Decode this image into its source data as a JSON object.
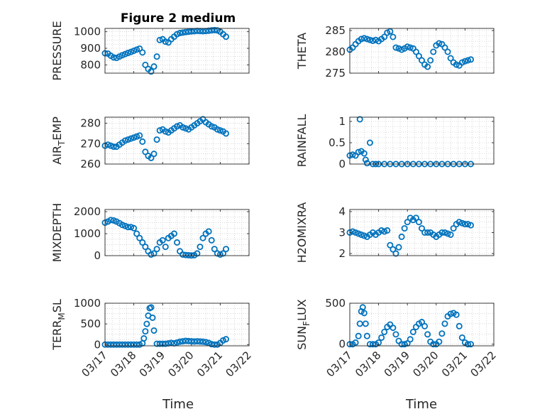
{
  "title": "Figure 2 medium",
  "x_ticks": [
    "03/17",
    "03/18",
    "03/19",
    "03/20",
    "03/21",
    "03/22"
  ],
  "x_label": "Time",
  "colors": {
    "marker": "#0072BD",
    "axis": "#262626",
    "grid": "#bdbdbd"
  },
  "chart_data": [
    {
      "type": "scatter",
      "id": "pressure",
      "ylabel_parts": [
        "PRESSURE"
      ],
      "ylim": [
        750,
        1020
      ],
      "yticks": [
        800,
        900,
        1000
      ],
      "x": [
        0.0,
        0.1,
        0.2,
        0.3,
        0.4,
        0.5,
        0.6,
        0.7,
        0.8,
        0.9,
        1.0,
        1.1,
        1.2,
        1.3,
        1.4,
        1.5,
        1.6,
        1.7,
        1.8,
        1.9,
        2.0,
        2.1,
        2.2,
        2.3,
        2.4,
        2.5,
        2.6,
        2.7,
        2.8,
        2.9,
        3.0,
        3.1,
        3.2,
        3.3,
        3.4,
        3.5,
        3.6,
        3.7,
        3.8,
        3.9,
        4.0,
        4.1,
        4.2
      ],
      "y": [
        870,
        868,
        855,
        845,
        842,
        850,
        858,
        865,
        872,
        878,
        885,
        892,
        898,
        875,
        800,
        775,
        760,
        790,
        850,
        950,
        955,
        940,
        935,
        955,
        970,
        985,
        992,
        995,
        998,
        1000,
        1002,
        1003,
        1005,
        1004,
        1003,
        1004,
        1006,
        1008,
        1010,
        1008,
        1000,
        985,
        970
      ]
    },
    {
      "type": "scatter",
      "id": "theta",
      "ylabel_parts": [
        "THETA"
      ],
      "ylim": [
        275,
        285.5
      ],
      "yticks": [
        275,
        280,
        285
      ],
      "x": [
        0.0,
        0.1,
        0.2,
        0.3,
        0.4,
        0.5,
        0.6,
        0.7,
        0.8,
        0.9,
        1.0,
        1.1,
        1.2,
        1.3,
        1.4,
        1.5,
        1.6,
        1.7,
        1.8,
        1.9,
        2.0,
        2.1,
        2.2,
        2.3,
        2.4,
        2.5,
        2.6,
        2.7,
        2.8,
        2.9,
        3.0,
        3.1,
        3.2,
        3.3,
        3.4,
        3.5,
        3.6,
        3.7,
        3.8,
        3.9,
        4.0,
        4.1,
        4.2
      ],
      "y": [
        280.5,
        281,
        281.8,
        282.5,
        283,
        283.2,
        283,
        282.8,
        282.6,
        282.8,
        282.5,
        283,
        283.5,
        284.5,
        284.8,
        283.5,
        281,
        280.8,
        280.5,
        280.8,
        281.2,
        281,
        280.8,
        280,
        279,
        278,
        277,
        276.5,
        278,
        280,
        281.5,
        282,
        281.8,
        281,
        280,
        278.5,
        277.5,
        277,
        276.8,
        277.5,
        277.8,
        278,
        278.2
      ]
    },
    {
      "type": "scatter",
      "id": "air_temp",
      "ylabel_parts": [
        "AIR",
        "T",
        "EMP"
      ],
      "ylim": [
        260,
        283
      ],
      "yticks": [
        260,
        270,
        280
      ],
      "x": [
        0.0,
        0.1,
        0.2,
        0.3,
        0.4,
        0.5,
        0.6,
        0.7,
        0.8,
        0.9,
        1.0,
        1.1,
        1.2,
        1.3,
        1.4,
        1.5,
        1.6,
        1.7,
        1.8,
        1.9,
        2.0,
        2.1,
        2.2,
        2.3,
        2.4,
        2.5,
        2.6,
        2.7,
        2.8,
        2.9,
        3.0,
        3.1,
        3.2,
        3.3,
        3.4,
        3.5,
        3.6,
        3.7,
        3.8,
        3.9,
        4.0,
        4.1,
        4.2
      ],
      "y": [
        269,
        269.5,
        269,
        268.5,
        268.5,
        269.5,
        270.5,
        271.5,
        272,
        272.5,
        273,
        273.5,
        274,
        271,
        266,
        264,
        263,
        265,
        272,
        276.5,
        277,
        276,
        275.5,
        276.5,
        277.5,
        278.5,
        279,
        278,
        277.5,
        277,
        278,
        279,
        280,
        281,
        282,
        280.5,
        279.5,
        278.5,
        278,
        277,
        276.5,
        276,
        275
      ]
    },
    {
      "type": "scatter",
      "id": "rainfall",
      "ylabel_parts": [
        "RAINFALL"
      ],
      "ylim": [
        0,
        1.1
      ],
      "yticks": [
        0,
        0.5,
        1
      ],
      "x": [
        0.0,
        0.1,
        0.2,
        0.3,
        0.35,
        0.4,
        0.5,
        0.55,
        0.6,
        0.7,
        0.8,
        0.9,
        1.0,
        1.2,
        1.4,
        1.6,
        1.8,
        2.0,
        2.2,
        2.4,
        2.6,
        2.8,
        3.0,
        3.2,
        3.4,
        3.6,
        3.8,
        4.0,
        4.2
      ],
      "y": [
        0.2,
        0.22,
        0.2,
        0.28,
        1.05,
        0.3,
        0.25,
        0.1,
        0.02,
        0.5,
        0.0,
        0.0,
        0.0,
        0.0,
        0.0,
        0.0,
        0.0,
        0.0,
        0.0,
        0.0,
        0.0,
        0.0,
        0.0,
        0.0,
        0.0,
        0.0,
        0.0,
        0.0,
        0.0
      ]
    },
    {
      "type": "scatter",
      "id": "mixdepth",
      "ylabel_parts": [
        "MIXDEPTH"
      ],
      "ylim": [
        0,
        2100
      ],
      "yticks": [
        0,
        1000,
        2000
      ],
      "x": [
        0.0,
        0.1,
        0.2,
        0.3,
        0.4,
        0.5,
        0.6,
        0.7,
        0.8,
        0.9,
        1.0,
        1.1,
        1.2,
        1.3,
        1.4,
        1.5,
        1.6,
        1.7,
        1.8,
        1.9,
        2.0,
        2.1,
        2.2,
        2.3,
        2.4,
        2.5,
        2.6,
        2.7,
        2.8,
        2.9,
        3.0,
        3.1,
        3.2,
        3.3,
        3.4,
        3.5,
        3.6,
        3.7,
        3.8,
        3.9,
        4.0,
        4.1,
        4.2
      ],
      "y": [
        1500,
        1550,
        1620,
        1600,
        1550,
        1480,
        1400,
        1350,
        1300,
        1300,
        1250,
        1000,
        800,
        600,
        400,
        200,
        50,
        100,
        300,
        600,
        700,
        400,
        800,
        900,
        1000,
        600,
        200,
        50,
        30,
        20,
        10,
        20,
        100,
        400,
        800,
        1000,
        1100,
        700,
        300,
        100,
        50,
        100,
        300
      ]
    },
    {
      "type": "scatter",
      "id": "h2omixra",
      "ylabel_parts": [
        "H2OMIXRA"
      ],
      "ylim": [
        1.9,
        4.1
      ],
      "yticks": [
        2,
        3,
        4
      ],
      "x": [
        0.0,
        0.1,
        0.2,
        0.3,
        0.4,
        0.5,
        0.6,
        0.7,
        0.8,
        0.9,
        1.0,
        1.1,
        1.2,
        1.3,
        1.4,
        1.5,
        1.6,
        1.7,
        1.8,
        1.9,
        2.0,
        2.1,
        2.2,
        2.3,
        2.4,
        2.5,
        2.6,
        2.7,
        2.8,
        2.9,
        3.0,
        3.1,
        3.2,
        3.3,
        3.4,
        3.5,
        3.6,
        3.7,
        3.8,
        3.9,
        4.0,
        4.1,
        4.2
      ],
      "y": [
        3.0,
        3.05,
        3.0,
        2.95,
        2.9,
        2.85,
        2.8,
        2.9,
        3.0,
        2.9,
        3.0,
        3.1,
        3.05,
        3.1,
        2.4,
        2.2,
        2.0,
        2.3,
        2.8,
        3.2,
        3.5,
        3.7,
        3.6,
        3.7,
        3.5,
        3.2,
        3.0,
        3.0,
        3.0,
        2.9,
        2.8,
        2.9,
        3.0,
        3.0,
        2.95,
        2.9,
        3.2,
        3.4,
        3.5,
        3.45,
        3.4,
        3.4,
        3.35
      ]
    },
    {
      "type": "scatter",
      "id": "terr_msl",
      "ylabel_parts": [
        "TERR",
        "M",
        "SL"
      ],
      "ylim": [
        -30,
        1000
      ],
      "yticks": [
        0,
        500,
        1000
      ],
      "x": [
        0.0,
        0.1,
        0.2,
        0.3,
        0.4,
        0.5,
        0.6,
        0.7,
        0.8,
        0.9,
        1.0,
        1.1,
        1.2,
        1.3,
        1.35,
        1.4,
        1.45,
        1.5,
        1.55,
        1.6,
        1.65,
        1.7,
        1.8,
        1.9,
        2.0,
        2.1,
        2.2,
        2.3,
        2.4,
        2.5,
        2.6,
        2.7,
        2.8,
        2.9,
        3.0,
        3.1,
        3.2,
        3.3,
        3.4,
        3.5,
        3.6,
        3.7,
        3.8,
        3.9,
        4.0,
        4.1,
        4.2
      ],
      "y": [
        0,
        0,
        0,
        0,
        0,
        0,
        0,
        0,
        0,
        0,
        0,
        0,
        0,
        30,
        150,
        320,
        500,
        700,
        880,
        900,
        650,
        340,
        20,
        20,
        20,
        20,
        30,
        40,
        30,
        50,
        70,
        80,
        90,
        85,
        80,
        75,
        80,
        75,
        70,
        60,
        40,
        10,
        0,
        0,
        40,
        100,
        130
      ]
    },
    {
      "type": "scatter",
      "id": "sun_flux",
      "ylabel_parts": [
        "SUN",
        "F",
        "LUX"
      ],
      "ylim": [
        -20,
        500
      ],
      "yticks": [
        0,
        500
      ],
      "x": [
        0.0,
        0.1,
        0.2,
        0.3,
        0.35,
        0.4,
        0.45,
        0.5,
        0.55,
        0.6,
        0.7,
        0.8,
        0.9,
        1.0,
        1.1,
        1.2,
        1.3,
        1.4,
        1.5,
        1.6,
        1.7,
        1.8,
        1.9,
        2.0,
        2.1,
        2.2,
        2.3,
        2.4,
        2.5,
        2.6,
        2.7,
        2.8,
        2.9,
        3.0,
        3.1,
        3.2,
        3.3,
        3.4,
        3.5,
        3.6,
        3.7,
        3.8,
        3.9,
        4.0,
        4.1,
        4.2
      ],
      "y": [
        0,
        0,
        20,
        100,
        250,
        400,
        450,
        380,
        250,
        100,
        0,
        0,
        0,
        20,
        80,
        150,
        210,
        240,
        200,
        120,
        40,
        0,
        0,
        10,
        60,
        150,
        210,
        250,
        270,
        220,
        120,
        30,
        0,
        0,
        30,
        130,
        250,
        340,
        370,
        380,
        360,
        220,
        80,
        20,
        0,
        0
      ]
    }
  ]
}
